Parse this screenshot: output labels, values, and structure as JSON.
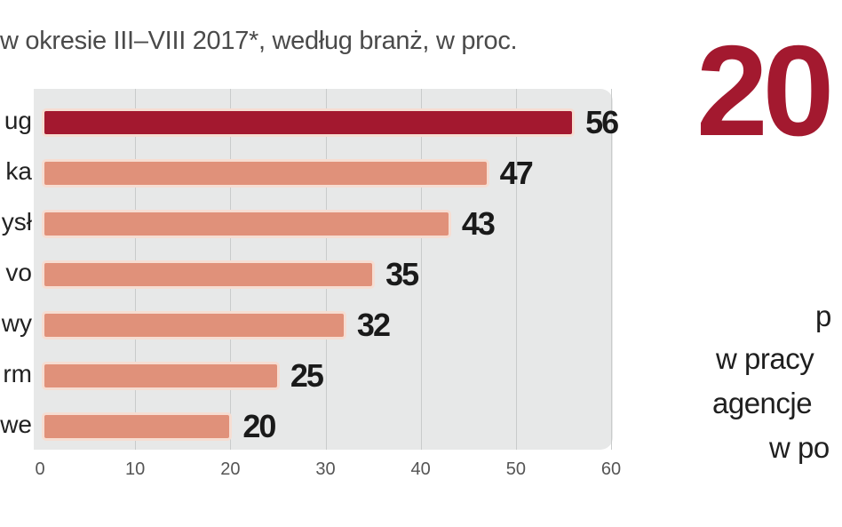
{
  "chart_data": {
    "type": "bar",
    "orientation": "horizontal",
    "title": "w okresie III–VIII 2017*, według branż, w proc.",
    "categories": [
      "ug",
      "ka",
      "ysł",
      "vo",
      "wy",
      "rm",
      "we"
    ],
    "values": [
      56,
      47,
      43,
      35,
      32,
      25,
      20
    ],
    "value_labels": [
      "56",
      "47",
      "43",
      "35",
      "32",
      "25",
      "20"
    ],
    "xlim": [
      0,
      60
    ],
    "xticks": [
      "0",
      "10",
      "20",
      "30",
      "40",
      "50",
      "60"
    ],
    "grid": true,
    "colors": {
      "highlight": "#a3182f",
      "default": "#e0917a"
    }
  },
  "side": {
    "big_number": "20",
    "lines": [
      "p",
      "w pracy",
      "agencje",
      "w po"
    ]
  }
}
